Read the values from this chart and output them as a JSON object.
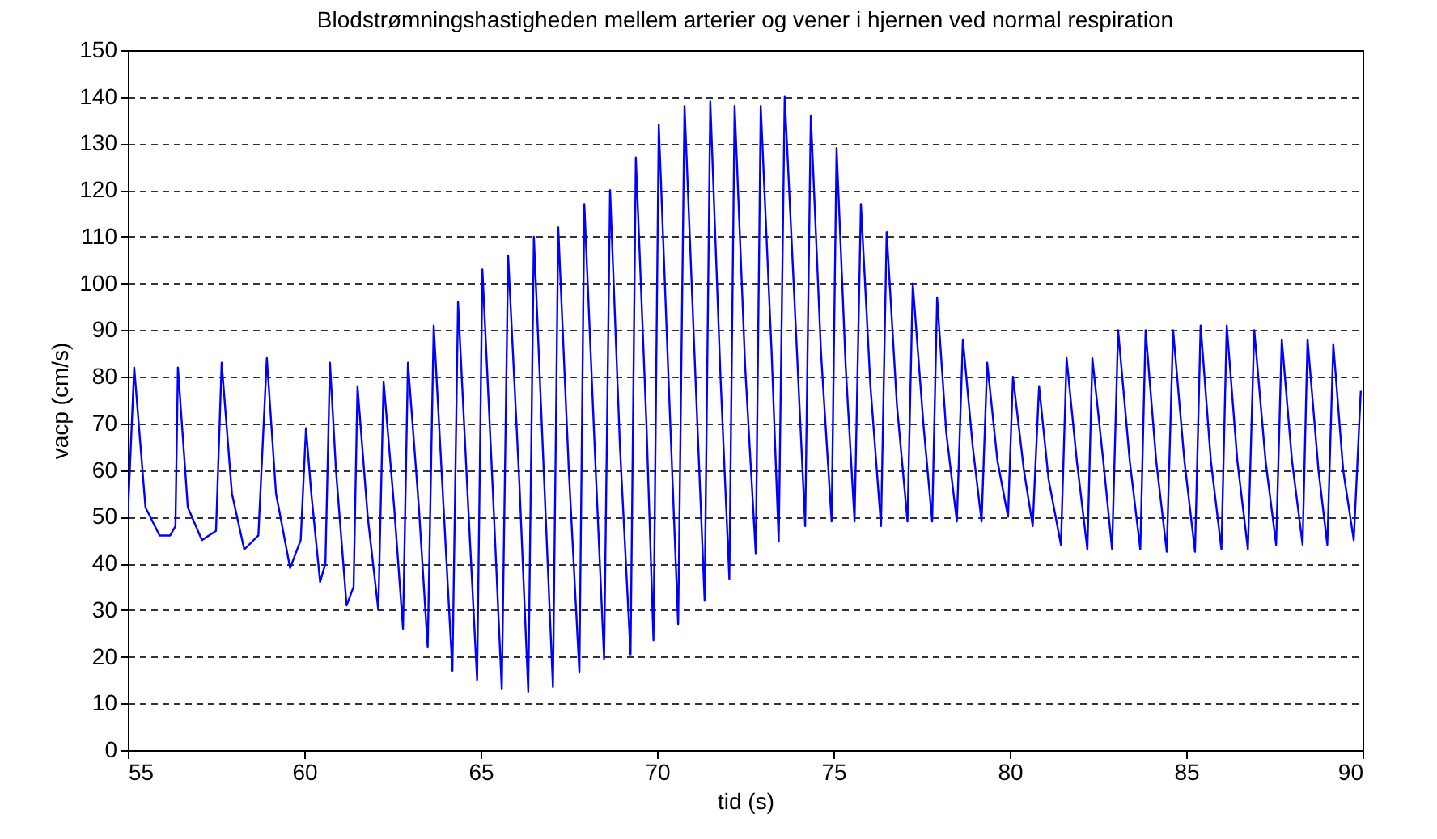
{
  "chart_data": {
    "type": "line",
    "title": "Blodstrømningshastigheden mellem arterier og vener i hjernen ved normal respiration",
    "xlabel": "tid (s)",
    "ylabel": "vacp (cm/s)",
    "xlim": [
      55,
      90
    ],
    "xticks": [
      55,
      60,
      65,
      70,
      75,
      80,
      85,
      90
    ],
    "ylim": [
      0,
      150
    ],
    "yticks": [
      0,
      10,
      20,
      30,
      40,
      50,
      60,
      70,
      80,
      90,
      100,
      110,
      120,
      130,
      140,
      150
    ],
    "grid": "y",
    "line_style": "solid",
    "x": [
      55.0,
      55.18,
      55.5,
      55.9,
      56.2,
      56.35,
      56.42,
      56.7,
      57.1,
      57.5,
      57.66,
      57.95,
      58.3,
      58.7,
      58.94,
      59.2,
      59.6,
      59.9,
      60.05,
      60.2,
      60.45,
      60.6,
      60.73,
      60.9,
      61.2,
      61.4,
      61.51,
      61.8,
      62.1,
      62.25,
      62.55,
      62.8,
      62.94,
      63.25,
      63.5,
      63.67,
      63.95,
      64.2,
      64.36,
      64.65,
      64.9,
      65.05,
      65.35,
      65.6,
      65.78,
      66.1,
      66.35,
      66.51,
      66.8,
      67.05,
      67.2,
      67.5,
      67.8,
      67.94,
      68.25,
      68.5,
      68.67,
      68.95,
      69.25,
      69.4,
      69.7,
      69.9,
      70.05,
      70.35,
      70.6,
      70.78,
      71.1,
      71.35,
      71.51,
      71.8,
      72.05,
      72.2,
      72.5,
      72.8,
      72.94,
      73.25,
      73.45,
      73.62,
      73.95,
      74.2,
      74.36,
      74.65,
      74.95,
      75.09,
      75.35,
      75.6,
      75.78,
      76.05,
      76.35,
      76.51,
      76.8,
      77.1,
      77.25,
      77.55,
      77.8,
      77.94,
      78.2,
      78.5,
      78.67,
      78.95,
      79.2,
      79.36,
      79.65,
      79.95,
      80.09,
      80.4,
      80.65,
      80.83,
      81.1,
      81.45,
      81.61,
      81.9,
      82.2,
      82.34,
      82.65,
      82.9,
      83.07,
      83.4,
      83.7,
      83.85,
      84.15,
      84.45,
      84.63,
      84.95,
      85.25,
      85.41,
      85.7,
      86.0,
      86.15,
      86.45,
      86.75,
      86.93,
      87.25,
      87.55,
      87.71,
      88.0,
      88.3,
      88.44,
      88.75,
      89.0,
      89.17,
      89.45,
      89.75,
      89.95
    ],
    "series": [
      {
        "color": "#0000ff",
        "values": [
          50,
          82,
          52,
          46,
          46,
          48,
          82,
          52,
          45,
          47,
          83,
          55,
          43,
          46,
          84,
          55,
          39,
          45,
          69,
          55,
          36,
          40,
          83,
          60,
          31,
          35,
          78,
          50,
          30,
          79,
          52,
          26,
          83,
          52,
          22,
          91,
          52,
          17,
          96,
          52,
          15,
          103,
          55,
          13,
          106,
          57,
          12.5,
          110,
          58,
          13.5,
          112,
          60,
          16.6,
          117,
          62,
          19.5,
          120,
          65,
          20.5,
          127,
          70,
          23.5,
          134,
          75,
          27,
          138,
          78,
          32,
          139,
          80,
          36.7,
          138,
          82,
          42,
          138,
          85,
          44.7,
          140,
          88,
          48,
          136,
          85,
          49,
          129,
          82,
          49,
          117,
          78,
          48,
          111,
          74,
          49,
          100,
          70,
          49,
          97,
          68,
          49,
          88,
          65,
          49,
          83,
          62,
          50,
          80,
          60,
          48,
          78,
          58,
          44,
          84,
          62,
          43,
          84,
          62,
          43,
          90,
          62,
          43,
          90,
          62,
          42.5,
          90,
          62,
          42.5,
          91,
          62,
          43,
          91,
          62,
          43,
          90,
          62,
          44,
          88,
          62,
          44,
          88,
          60,
          44,
          87,
          60,
          45,
          77
        ]
      }
    ]
  }
}
